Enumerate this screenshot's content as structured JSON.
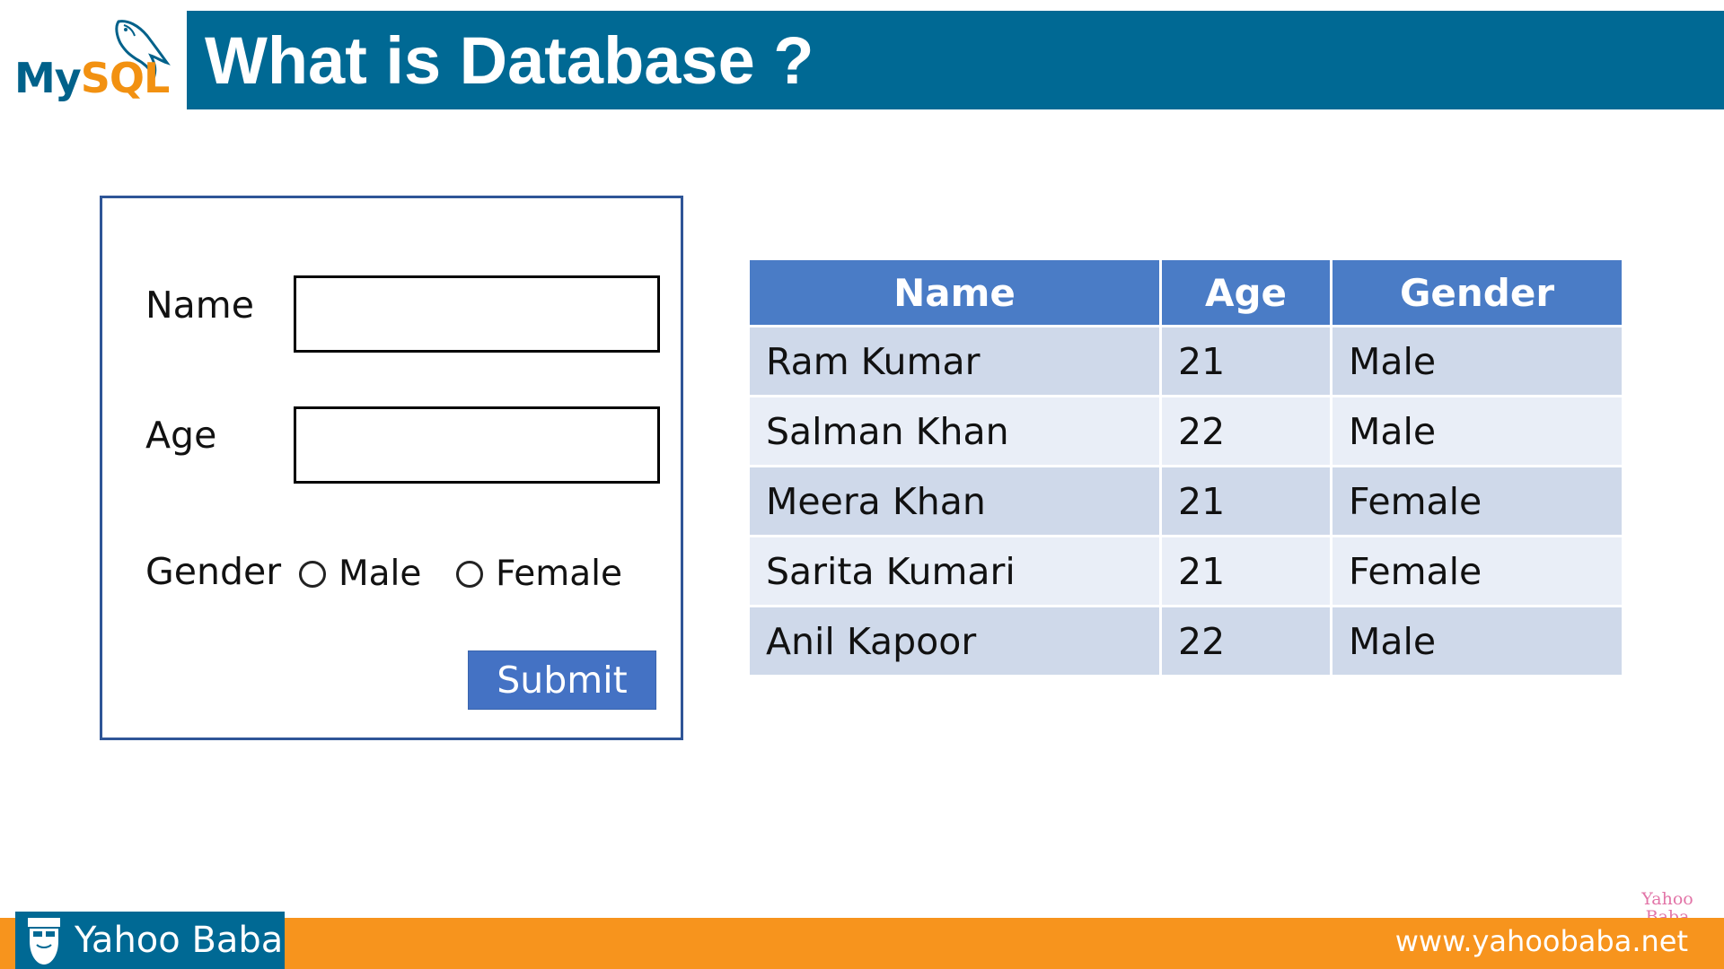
{
  "logo": {
    "my": "My",
    "sql": "SQL"
  },
  "header": {
    "title": "What is Database ?"
  },
  "form": {
    "name_label": "Name",
    "name_value": "",
    "age_label": "Age",
    "age_value": "",
    "gender_label": "Gender",
    "gender_options": [
      "Male",
      "Female"
    ],
    "submit_label": "Submit"
  },
  "table": {
    "columns": [
      "Name",
      "Age",
      "Gender"
    ],
    "rows": [
      [
        "Ram Kumar",
        "21",
        "Male"
      ],
      [
        "Salman Khan",
        "22",
        "Male"
      ],
      [
        "Meera Khan",
        "21",
        "Female"
      ],
      [
        "Sarita Kumari",
        "21",
        "Female"
      ],
      [
        "Anil Kapoor",
        "22",
        "Male"
      ]
    ]
  },
  "footer": {
    "brand": "Yahoo Baba",
    "url": "www.yahoobaba.net",
    "watermark": [
      "Yahoo",
      "Baba"
    ]
  },
  "colors": {
    "header_bg": "#006994",
    "footer_orange": "#f7941d",
    "table_header": "#4a7cc6",
    "row_dark": "#cfd9ea",
    "row_light": "#e9eef7",
    "button": "#4472c4"
  },
  "icons": {
    "logo": "mysql-dolphin-icon",
    "brand": "bearded-face-icon"
  }
}
